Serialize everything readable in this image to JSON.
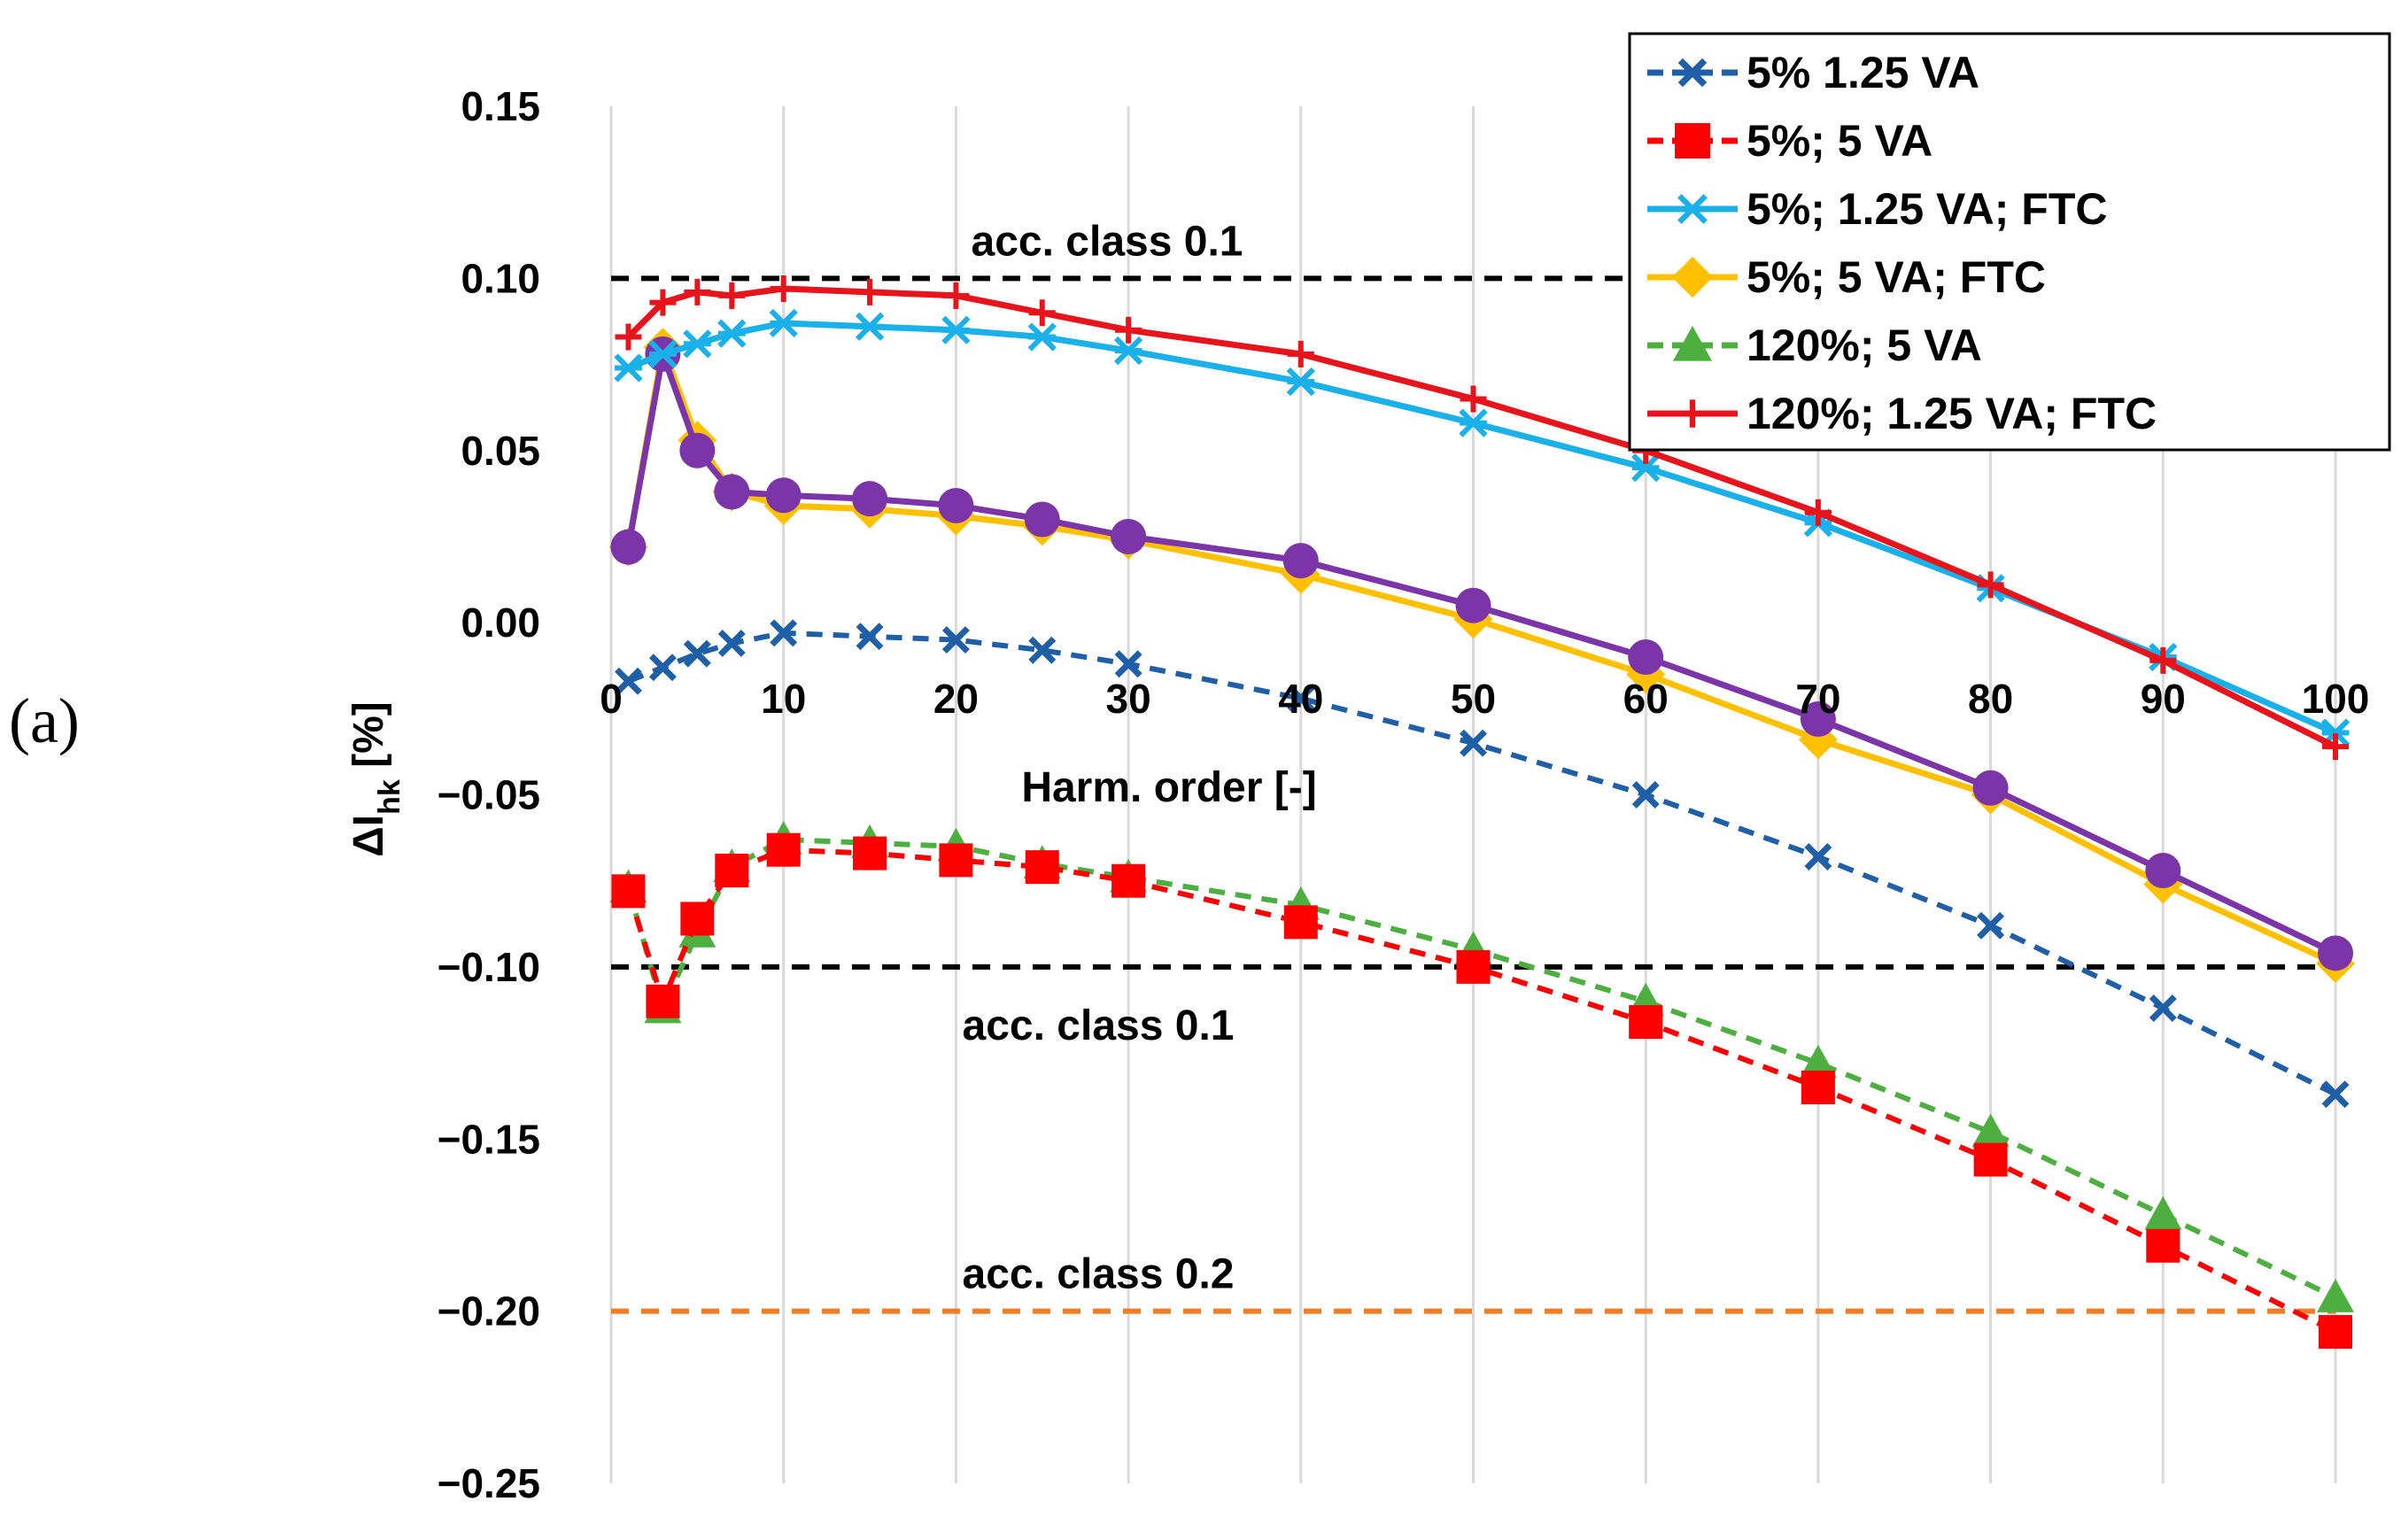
{
  "panel_label": "(a)",
  "chart_data": {
    "type": "line",
    "title": "",
    "xlabel": "Harm. order [-]",
    "ylabel_main": "ΔI",
    "ylabel_sub": "hk",
    "ylabel_unit": " [%]",
    "xlim": [
      0,
      100
    ],
    "ylim": [
      -0.25,
      0.15
    ],
    "x_ticks": [
      0,
      10,
      20,
      30,
      40,
      50,
      60,
      70,
      80,
      90,
      100
    ],
    "x_tick_labels": [
      "0",
      "10",
      "20",
      "30",
      "40",
      "50",
      "60",
      "70",
      "80",
      "90",
      "100"
    ],
    "y_ticks": [
      0.15,
      0.1,
      0.05,
      0.0,
      -0.05,
      -0.1,
      -0.15,
      -0.2,
      -0.25
    ],
    "y_tick_labels": [
      "0.15",
      "0.10",
      "0.05",
      "0.00",
      "−0.05",
      "−0.10",
      "−0.15",
      "−0.20",
      "−0.25"
    ],
    "grid": "vertical",
    "legend_position": "top-right",
    "x": [
      1,
      3,
      5,
      7,
      10,
      15,
      20,
      25,
      30,
      40,
      50,
      60,
      70,
      80,
      90,
      100
    ],
    "series": [
      {
        "name": "5% 1.25 VA",
        "color": "#1f5fa8",
        "dash": "dashed",
        "marker": "x",
        "in_legend": true,
        "values": [
          -0.017,
          -0.013,
          -0.009,
          -0.006,
          -0.003,
          -0.004,
          -0.005,
          -0.008,
          -0.012,
          -0.022,
          -0.035,
          -0.05,
          -0.068,
          -0.088,
          -0.112,
          -0.137
        ]
      },
      {
        "name": "5%; 5 VA",
        "color": "#ff0000",
        "dash": "dashed",
        "marker": "square",
        "in_legend": true,
        "values": [
          -0.078,
          -0.11,
          -0.086,
          -0.072,
          -0.066,
          -0.067,
          -0.069,
          -0.071,
          -0.075,
          -0.087,
          -0.1,
          -0.116,
          -0.135,
          -0.156,
          -0.181,
          -0.206
        ]
      },
      {
        "name": "5%; 1.25 VA; FTC",
        "color": "#1ab0ea",
        "dash": "solid",
        "marker": "star",
        "in_legend": true,
        "values": [
          0.074,
          0.078,
          0.081,
          0.084,
          0.087,
          0.086,
          0.085,
          0.083,
          0.079,
          0.07,
          0.058,
          0.045,
          0.029,
          0.01,
          -0.01,
          -0.032
        ]
      },
      {
        "name": "5%; 5 VA; FTC",
        "color": "#ffc000",
        "dash": "solid",
        "marker": "diamond",
        "in_legend": true,
        "values": [
          0.022,
          0.08,
          0.053,
          0.038,
          0.034,
          0.033,
          0.031,
          0.028,
          0.024,
          0.014,
          0.001,
          -0.015,
          -0.034,
          -0.05,
          -0.076,
          -0.099
        ]
      },
      {
        "name": "120%; 5 VA",
        "color": "#4caf3f",
        "dash": "dashed",
        "marker": "triangle",
        "in_legend": true,
        "values": [
          -0.077,
          -0.112,
          -0.09,
          -0.071,
          -0.063,
          -0.064,
          -0.065,
          -0.07,
          -0.074,
          -0.082,
          -0.095,
          -0.11,
          -0.128,
          -0.148,
          -0.172,
          -0.196
        ]
      },
      {
        "name": "120%; 1.25 VA; FTC",
        "color": "#e8141c",
        "dash": "solid",
        "marker": "plus",
        "in_legend": true,
        "values": [
          0.083,
          0.093,
          0.096,
          0.095,
          0.097,
          0.096,
          0.095,
          0.09,
          0.085,
          0.078,
          0.065,
          0.05,
          0.032,
          0.011,
          -0.011,
          -0.036
        ]
      },
      {
        "name": "",
        "color": "#7b35a8",
        "dash": "solid",
        "marker": "circle",
        "in_legend": false,
        "values": [
          0.022,
          0.078,
          0.05,
          0.038,
          0.037,
          0.036,
          0.034,
          0.03,
          0.025,
          0.018,
          0.005,
          -0.01,
          -0.028,
          -0.048,
          -0.072,
          -0.096
        ]
      }
    ],
    "reference_lines": [
      {
        "label": "acc. class 0.1",
        "y": 0.1,
        "color": "#000000",
        "label_position": "above"
      },
      {
        "label": "acc. class 0.1",
        "y": -0.1,
        "color": "#000000",
        "label_position": "below"
      },
      {
        "label": "acc. class 0.2",
        "y": -0.2,
        "color": "#f07e26",
        "label_position": "above"
      }
    ]
  }
}
